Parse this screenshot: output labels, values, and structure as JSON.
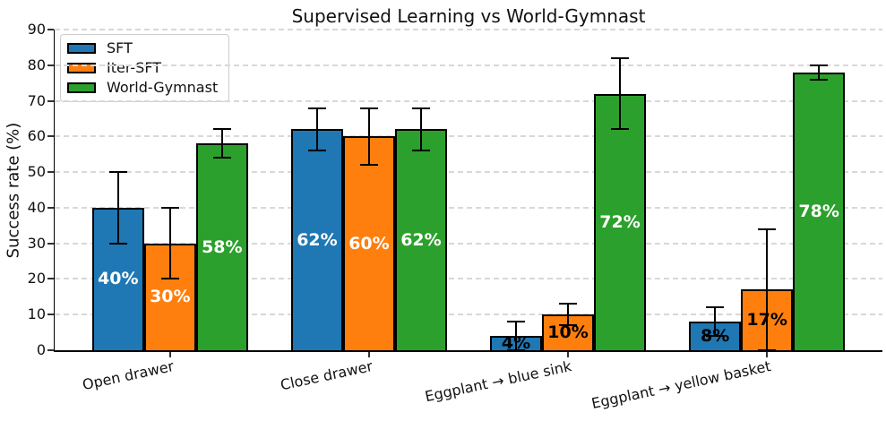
{
  "chart_data": {
    "type": "bar",
    "title": "Supervised Learning vs World-Gymnast",
    "xlabel": "",
    "ylabel": "Success rate (%)",
    "ylim": [
      0,
      90
    ],
    "yticks": [
      0,
      10,
      20,
      30,
      40,
      50,
      60,
      70,
      80,
      90
    ],
    "grid": true,
    "grid_style": "dashed",
    "legend_position": "upper left",
    "bar_label_format": "{value}%",
    "categories": [
      "Open drawer",
      "Close drawer",
      "Eggplant → blue sink",
      "Eggplant → yellow basket"
    ],
    "series": [
      {
        "name": "SFT",
        "color": "#1f77b4",
        "values": [
          40,
          62,
          4,
          8
        ],
        "errors": [
          10,
          6,
          4,
          4
        ]
      },
      {
        "name": "Iter-SFT",
        "color": "#ff7f0e",
        "values": [
          30,
          60,
          10,
          17
        ],
        "errors": [
          10,
          8,
          3,
          17
        ]
      },
      {
        "name": "World-Gymnast",
        "color": "#2ca02c",
        "values": [
          58,
          62,
          72,
          78
        ],
        "errors": [
          4,
          6,
          10,
          2
        ]
      }
    ],
    "bar_labels": {
      "color_tall": "#ffffff",
      "color_short": "#000000",
      "short_threshold": 20
    }
  }
}
